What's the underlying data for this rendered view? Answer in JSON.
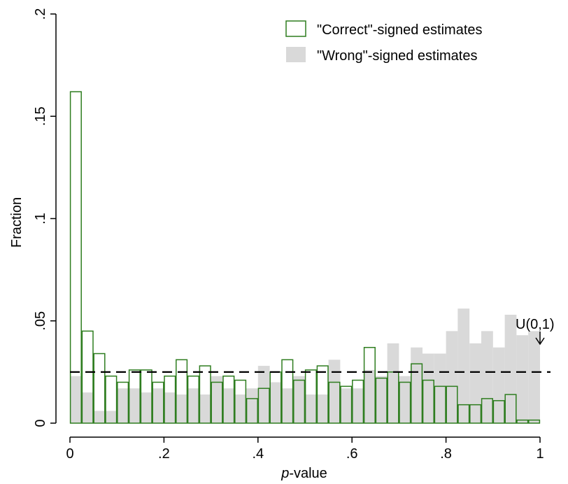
{
  "chart_data": {
    "type": "bar",
    "xlabel_italic": "p",
    "xlabel_rest": "-value",
    "ylabel": "Fraction",
    "xlim": [
      0,
      1
    ],
    "ylim": [
      0,
      0.2
    ],
    "x_ticks": [
      {
        "value": 0,
        "label": "0"
      },
      {
        "value": 0.2,
        "label": ".2"
      },
      {
        "value": 0.4,
        "label": ".4"
      },
      {
        "value": 0.6,
        "label": ".6"
      },
      {
        "value": 0.8,
        "label": ".8"
      },
      {
        "value": 1,
        "label": "1"
      }
    ],
    "y_ticks": [
      {
        "value": 0,
        "label": "0"
      },
      {
        "value": 0.05,
        "label": ".05"
      },
      {
        "value": 0.1,
        "label": ".1"
      },
      {
        "value": 0.15,
        "label": ".15"
      },
      {
        "value": 0.2,
        "label": ".2"
      }
    ],
    "bin_width": 0.025,
    "bin_starts": [
      0,
      0.025,
      0.05,
      0.075,
      0.1,
      0.125,
      0.15,
      0.175,
      0.2,
      0.225,
      0.25,
      0.275,
      0.3,
      0.325,
      0.35,
      0.375,
      0.4,
      0.425,
      0.45,
      0.475,
      0.5,
      0.525,
      0.55,
      0.575,
      0.6,
      0.625,
      0.65,
      0.675,
      0.7,
      0.725,
      0.75,
      0.775,
      0.8,
      0.825,
      0.85,
      0.875,
      0.9,
      0.925,
      0.95,
      0.975
    ],
    "series": [
      {
        "name": "\"Correct\"-signed estimates",
        "style": "outline",
        "color": "#2e7d1f",
        "values": [
          0.162,
          0.045,
          0.034,
          0.023,
          0.02,
          0.026,
          0.026,
          0.02,
          0.023,
          0.031,
          0.023,
          0.028,
          0.02,
          0.023,
          0.021,
          0.012,
          0.017,
          0.025,
          0.031,
          0.021,
          0.026,
          0.028,
          0.02,
          0.018,
          0.021,
          0.037,
          0.022,
          0.025,
          0.02,
          0.029,
          0.021,
          0.018,
          0.018,
          0.009,
          0.009,
          0.012,
          0.011,
          0.014,
          0.0015,
          0.0015
        ]
      },
      {
        "name": "\"Wrong\"-signed estimates",
        "style": "filled",
        "color": "#d9d9d9",
        "values": [
          0.023,
          0.015,
          0.006,
          0.006,
          0.017,
          0.017,
          0.015,
          0.017,
          0.015,
          0.014,
          0.017,
          0.014,
          0.023,
          0.017,
          0.014,
          0.017,
          0.028,
          0.02,
          0.017,
          0.023,
          0.014,
          0.014,
          0.031,
          0.017,
          0.017,
          0.026,
          0.023,
          0.039,
          0.023,
          0.037,
          0.034,
          0.034,
          0.045,
          0.056,
          0.039,
          0.045,
          0.037,
          0.053,
          0.043,
          0.045
        ]
      }
    ],
    "reference_line": {
      "y": 0.025,
      "style": "dashed",
      "label": "U(0,1)"
    },
    "legend_position": "top-right",
    "grid": false
  }
}
